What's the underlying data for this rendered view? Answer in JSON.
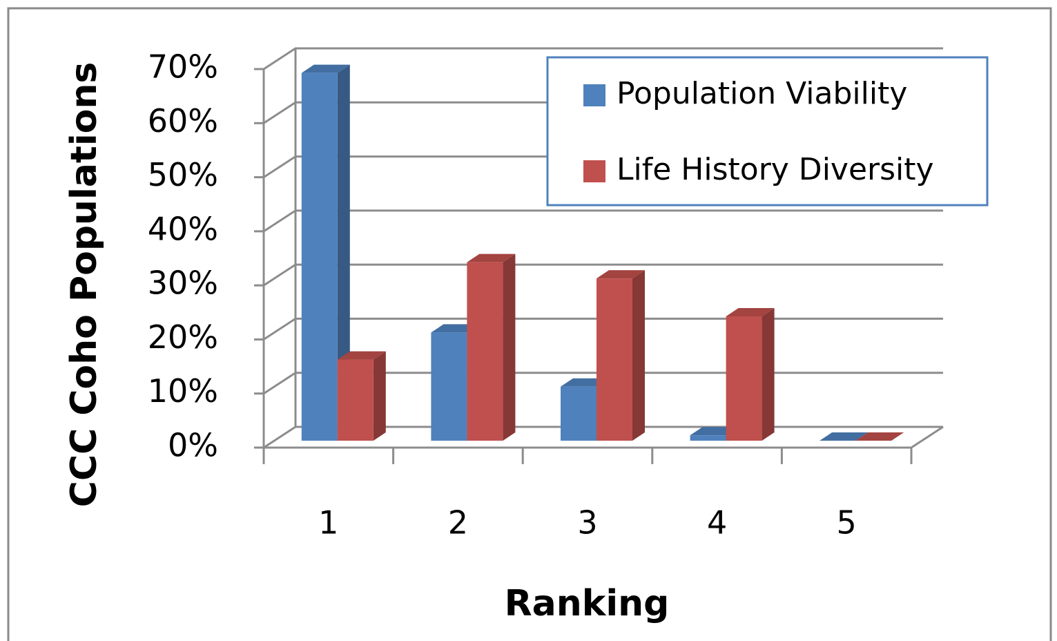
{
  "chart_data": {
    "type": "bar3d",
    "x_label": "Ranking",
    "y_label": "CCC Coho Populations",
    "categories": [
      "1",
      "2",
      "3",
      "4",
      "5"
    ],
    "series": [
      {
        "name": "Population Viability",
        "color": "#4f81bd",
        "values": [
          68,
          20,
          10,
          1,
          0
        ]
      },
      {
        "name": "Life History Diversity",
        "color": "#c0504d",
        "values": [
          15,
          33,
          30,
          23,
          0
        ]
      }
    ],
    "ylim": [
      0,
      70
    ],
    "yticks": [
      {
        "value": 0,
        "label": "0%"
      },
      {
        "value": 10,
        "label": "10%"
      },
      {
        "value": 20,
        "label": "20%"
      },
      {
        "value": 30,
        "label": "30%"
      },
      {
        "value": 40,
        "label": "40%"
      },
      {
        "value": 50,
        "label": "50%"
      },
      {
        "value": 60,
        "label": "60%"
      },
      {
        "value": 70,
        "label": "70%"
      }
    ],
    "grid": true,
    "legend": "upper right"
  }
}
